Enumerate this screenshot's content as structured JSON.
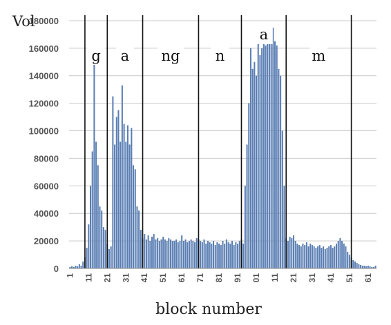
{
  "chart_data": {
    "type": "bar",
    "ylabel": "Vol",
    "xlabel": "block number",
    "ylim": [
      0,
      190000
    ],
    "y_ticks": [
      "0",
      "20000",
      "40000",
      "60000",
      "80000",
      "100000",
      "120000",
      "140000",
      "160000",
      "180000"
    ],
    "y_tick_values": [
      0,
      20000,
      40000,
      60000,
      80000,
      100000,
      120000,
      140000,
      160000,
      180000
    ],
    "x_tick_labels": [
      "1",
      "11",
      "21",
      "31",
      "41",
      "51",
      "61",
      "71",
      "81",
      "91",
      "01",
      "11",
      "21",
      "31",
      "41",
      "51",
      "61"
    ],
    "x_tick_blocks": [
      1,
      11,
      21,
      31,
      41,
      51,
      61,
      71,
      81,
      91,
      101,
      111,
      121,
      131,
      141,
      151,
      161
    ],
    "block_count": 165,
    "grid": true,
    "bar_color": "#5b7fb4",
    "segments": [
      {
        "label": "g",
        "start": 8.5,
        "end": 20.5
      },
      {
        "label": "a",
        "start": 20.5,
        "end": 39.5
      },
      {
        "label": "ng",
        "start": 39.5,
        "end": 69.5
      },
      {
        "label": "n",
        "start": 69.5,
        "end": 92.5
      },
      {
        "label": "a",
        "start": 92.5,
        "end": 116.5
      },
      {
        "label": "m",
        "start": 116.5,
        "end": 151.5
      }
    ],
    "boundary_blocks": [
      8.5,
      20.5,
      39.5,
      69.5,
      92.5,
      116.5,
      151.5
    ],
    "values": [
      1000,
      1500,
      1000,
      2000,
      1500,
      3000,
      2000,
      5000,
      8000,
      15000,
      32000,
      60000,
      85000,
      155000,
      92000,
      75000,
      45000,
      42000,
      30000,
      28000,
      18000,
      14000,
      16000,
      125000,
      90000,
      110000,
      115000,
      92000,
      133000,
      105000,
      92000,
      104000,
      90000,
      102000,
      75000,
      72000,
      45000,
      42000,
      28000,
      22000,
      25000,
      21000,
      24000,
      20000,
      23000,
      25000,
      21000,
      22000,
      20000,
      21000,
      23000,
      21000,
      20000,
      22000,
      21000,
      20000,
      20000,
      21000,
      19000,
      20000,
      24000,
      20000,
      21000,
      19000,
      20000,
      21000,
      20000,
      19000,
      22000,
      21000,
      20000,
      19000,
      21000,
      18000,
      20000,
      19000,
      18000,
      20000,
      17000,
      19000,
      18000,
      17000,
      20000,
      18000,
      21000,
      19000,
      18000,
      20000,
      17000,
      19000,
      18000,
      20000,
      21000,
      18000,
      60000,
      90000,
      120000,
      160000,
      145000,
      150000,
      140000,
      165000,
      155000,
      160000,
      175000,
      162000,
      170000,
      175000,
      168000,
      175000,
      165000,
      162000,
      145000,
      140000,
      100000,
      60000,
      22000,
      20000,
      23000,
      22000,
      24000,
      20000,
      18000,
      17000,
      16000,
      18000,
      17000,
      19000,
      16000,
      18000,
      17000,
      16000,
      15000,
      16000,
      17000,
      15000,
      16000,
      14000,
      15000,
      16000,
      17000,
      15000,
      16000,
      18000,
      20000,
      22000,
      20000,
      18000,
      16000,
      12000,
      10000,
      8000,
      6000,
      5000,
      4000,
      3000,
      2500,
      2000,
      2000,
      1500,
      2000,
      1500,
      1000,
      1000,
      2000
    ]
  }
}
